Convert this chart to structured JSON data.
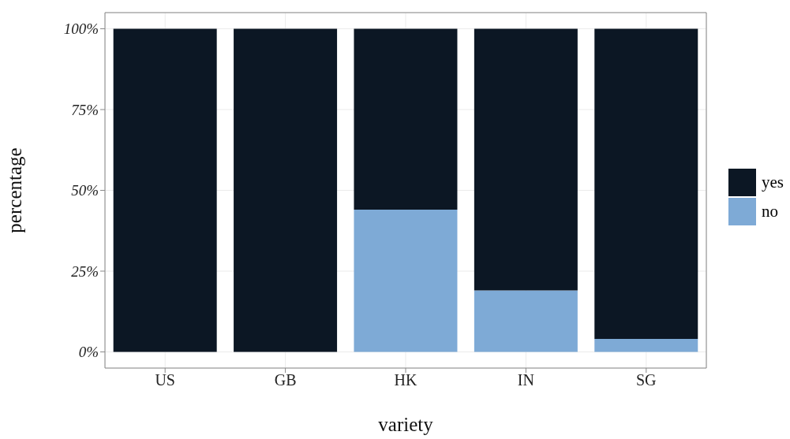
{
  "chart_data": {
    "type": "bar",
    "stacked": true,
    "xlabel": "variety",
    "ylabel": "percentage",
    "categories": [
      "US",
      "GB",
      "HK",
      "IN",
      "SG"
    ],
    "series": [
      {
        "name": "no",
        "color": "#7eaad6",
        "values": [
          0,
          0,
          44,
          19,
          4
        ]
      },
      {
        "name": "yes",
        "color": "#0c1724",
        "values": [
          100,
          100,
          56,
          81,
          96
        ]
      }
    ],
    "ylim": [
      -5,
      105
    ],
    "yticks": [
      {
        "value": 0,
        "label": "0%"
      },
      {
        "value": 25,
        "label": "25%"
      },
      {
        "value": 50,
        "label": "50%"
      },
      {
        "value": 75,
        "label": "75%"
      },
      {
        "value": 100,
        "label": "100%"
      }
    ],
    "grid": true,
    "legend": "right"
  }
}
